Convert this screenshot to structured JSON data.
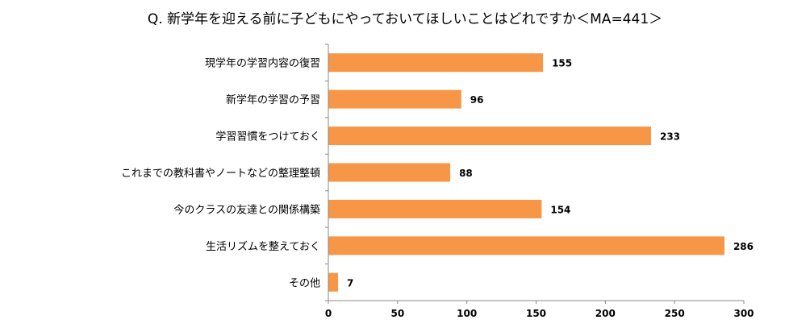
{
  "chart_data": {
    "type": "bar",
    "orientation": "horizontal",
    "title": "Q. 新学年を迎える前に子どもにやっておいてほしいことはどれですか＜MA=441＞",
    "categories": [
      "現学年の学習内容の復習",
      "新学年の学習の予習",
      "学習習慣をつけておく",
      "これまでの教科書やノートなどの整理整頓",
      "今のクラスの友達との関係構築",
      "生活リズムを整えておく",
      "その他"
    ],
    "values": [
      155,
      96,
      233,
      88,
      154,
      286,
      7
    ],
    "xlim": [
      0,
      300
    ],
    "xticks": [
      "0",
      "50",
      "100",
      "150",
      "200",
      "250",
      "300"
    ],
    "bar_color": "#F79646",
    "grid": false,
    "legend": "none"
  }
}
